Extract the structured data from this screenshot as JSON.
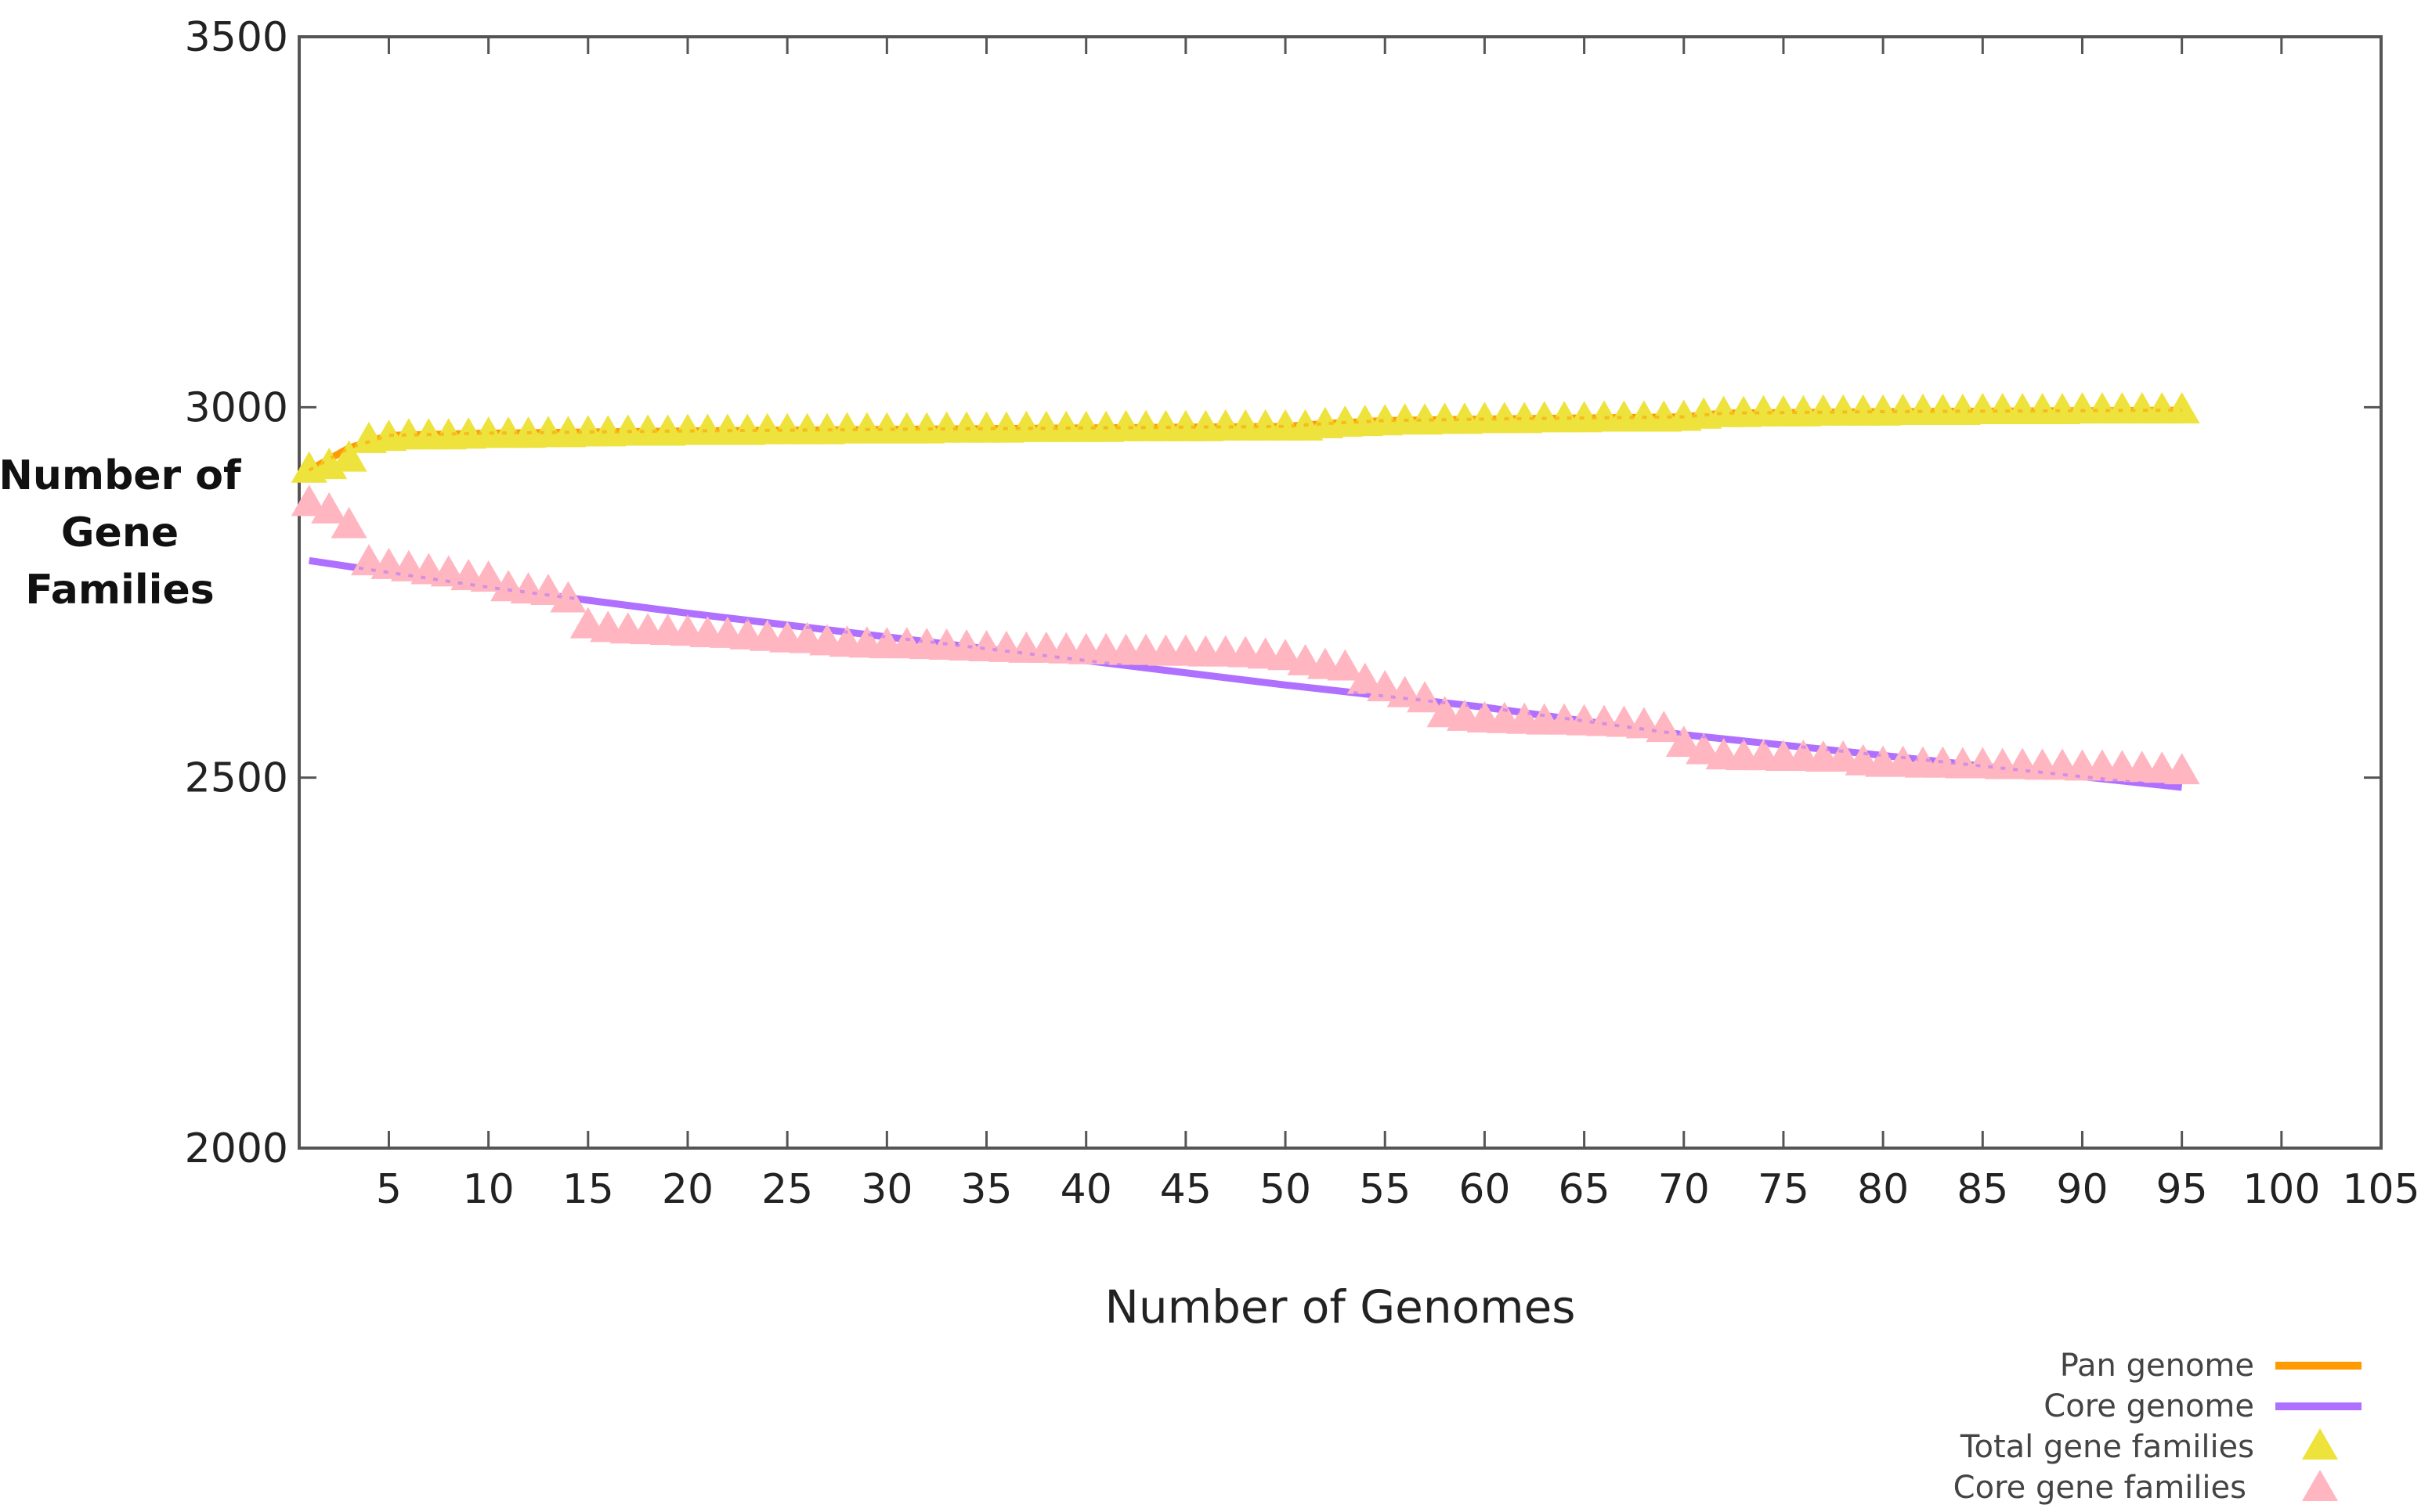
{
  "chart_data": {
    "type": "line",
    "title": "",
    "xlabel": "Number of Genomes",
    "ylabel_lines": [
      "Number of",
      "Gene",
      "Families"
    ],
    "xlim": [
      0.5,
      105
    ],
    "ylim": [
      2000,
      3500
    ],
    "xticks": [
      5,
      10,
      15,
      20,
      25,
      30,
      35,
      40,
      45,
      50,
      55,
      60,
      65,
      70,
      75,
      80,
      85,
      90,
      95,
      100,
      105
    ],
    "yticks": [
      2000,
      2500,
      3000,
      3500
    ],
    "grid": false,
    "legend_position": "bottom-right",
    "series": [
      {
        "name": "Pan genome",
        "kind": "line",
        "color": "#ff9a00",
        "x": [
          1,
          3,
          5,
          10,
          20,
          30,
          40,
          50,
          52,
          55,
          60,
          70,
          72,
          80,
          95
        ],
        "y": [
          2915,
          2945,
          2962,
          2965,
          2968,
          2970,
          2972,
          2974,
          2978,
          2982,
          2984,
          2987,
          2992,
          2994,
          2996
        ]
      },
      {
        "name": "Core genome",
        "kind": "line",
        "color": "#b070ff",
        "x": [
          1,
          10,
          20,
          30,
          40,
          50,
          60,
          70,
          80,
          95
        ],
        "y": [
          2793,
          2757,
          2722,
          2690,
          2658,
          2625,
          2595,
          2558,
          2530,
          2487
        ]
      },
      {
        "name": "Total gene families",
        "kind": "scatter",
        "marker": "triangle",
        "color": "#eee23c",
        "x": [
          1,
          2,
          3,
          4,
          5,
          6,
          7,
          8,
          9,
          10,
          11,
          12,
          13,
          14,
          15,
          16,
          17,
          18,
          19,
          20,
          21,
          22,
          23,
          24,
          25,
          26,
          27,
          28,
          29,
          30,
          31,
          32,
          33,
          34,
          35,
          36,
          37,
          38,
          39,
          40,
          41,
          42,
          43,
          44,
          45,
          46,
          47,
          48,
          49,
          50,
          51,
          52,
          53,
          54,
          55,
          56,
          57,
          58,
          59,
          60,
          61,
          62,
          63,
          64,
          65,
          66,
          67,
          68,
          69,
          70,
          71,
          72,
          73,
          74,
          75,
          76,
          77,
          78,
          79,
          80,
          81,
          82,
          83,
          84,
          85,
          86,
          87,
          88,
          89,
          90,
          91,
          92,
          93,
          94,
          95
        ],
        "y": [
          2915,
          2920,
          2930,
          2955,
          2958,
          2960,
          2960,
          2960,
          2961,
          2962,
          2962,
          2962,
          2963,
          2963,
          2964,
          2964,
          2965,
          2965,
          2965,
          2966,
          2966,
          2966,
          2966,
          2967,
          2967,
          2967,
          2967,
          2968,
          2968,
          2968,
          2968,
          2968,
          2969,
          2969,
          2969,
          2969,
          2970,
          2970,
          2970,
          2970,
          2970,
          2971,
          2971,
          2971,
          2971,
          2971,
          2972,
          2972,
          2972,
          2972,
          2972,
          2975,
          2977,
          2978,
          2979,
          2980,
          2980,
          2981,
          2981,
          2982,
          2982,
          2982,
          2983,
          2983,
          2983,
          2984,
          2984,
          2984,
          2984,
          2985,
          2988,
          2990,
          2990,
          2991,
          2991,
          2991,
          2992,
          2992,
          2992,
          2992,
          2993,
          2993,
          2993,
          2993,
          2994,
          2994,
          2994,
          2994,
          2994,
          2995,
          2995,
          2995,
          2995,
          2995,
          2995
        ]
      },
      {
        "name": "Core gene families",
        "kind": "scatter",
        "marker": "triangle",
        "color": "#ffb6c1",
        "x": [
          1,
          2,
          3,
          4,
          5,
          6,
          7,
          8,
          9,
          10,
          11,
          12,
          13,
          14,
          15,
          16,
          17,
          18,
          19,
          20,
          21,
          22,
          23,
          24,
          25,
          26,
          27,
          28,
          29,
          30,
          31,
          32,
          33,
          34,
          35,
          36,
          37,
          38,
          39,
          40,
          41,
          42,
          43,
          44,
          45,
          46,
          47,
          48,
          49,
          50,
          51,
          52,
          53,
          54,
          55,
          56,
          57,
          58,
          59,
          60,
          61,
          62,
          63,
          64,
          65,
          66,
          67,
          68,
          69,
          70,
          71,
          72,
          73,
          74,
          75,
          76,
          77,
          78,
          79,
          80,
          81,
          82,
          83,
          84,
          85,
          86,
          87,
          88,
          89,
          90,
          91,
          92,
          93,
          94,
          95
        ],
        "y": [
          2870,
          2860,
          2840,
          2790,
          2785,
          2782,
          2778,
          2775,
          2770,
          2768,
          2755,
          2752,
          2750,
          2740,
          2705,
          2700,
          2698,
          2697,
          2696,
          2695,
          2693,
          2692,
          2690,
          2688,
          2686,
          2685,
          2682,
          2680,
          2679,
          2678,
          2678,
          2677,
          2676,
          2675,
          2674,
          2673,
          2672,
          2672,
          2671,
          2670,
          2670,
          2669,
          2669,
          2668,
          2668,
          2667,
          2667,
          2666,
          2664,
          2662,
          2655,
          2650,
          2648,
          2630,
          2620,
          2612,
          2605,
          2585,
          2580,
          2578,
          2577,
          2576,
          2575,
          2575,
          2574,
          2573,
          2572,
          2570,
          2565,
          2545,
          2535,
          2528,
          2527,
          2527,
          2526,
          2526,
          2525,
          2525,
          2520,
          2518,
          2518,
          2517,
          2517,
          2516,
          2516,
          2515,
          2515,
          2514,
          2514,
          2513,
          2513,
          2512,
          2511,
          2510,
          2508
        ]
      }
    ]
  }
}
